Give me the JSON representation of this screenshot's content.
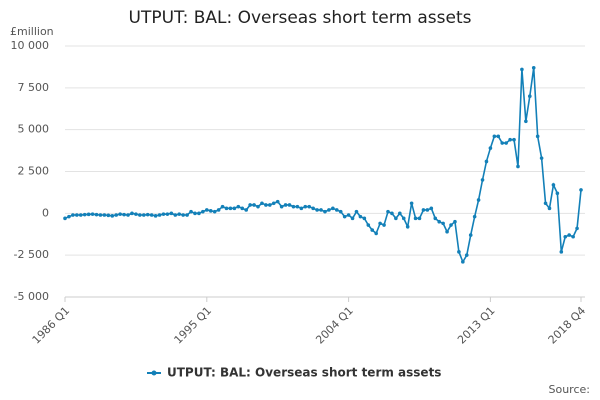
{
  "chart_data": {
    "type": "line",
    "title": "UTPUT: BAL: Overseas short term assets",
    "y_label": "£million",
    "source": "Source:",
    "categories": [
      "1986 Q1",
      null,
      null,
      null,
      null,
      null,
      null,
      null,
      null,
      null,
      null,
      null,
      null,
      null,
      null,
      null,
      null,
      null,
      null,
      null,
      null,
      null,
      null,
      null,
      null,
      null,
      null,
      null,
      null,
      null,
      null,
      null,
      null,
      null,
      null,
      null,
      "1995 Q1",
      null,
      null,
      null,
      null,
      null,
      null,
      null,
      null,
      null,
      null,
      null,
      null,
      null,
      null,
      null,
      null,
      null,
      null,
      null,
      null,
      null,
      null,
      null,
      null,
      null,
      null,
      null,
      null,
      null,
      null,
      null,
      null,
      null,
      null,
      null,
      "2004 Q1",
      null,
      null,
      null,
      null,
      null,
      null,
      null,
      null,
      null,
      null,
      null,
      null,
      null,
      null,
      null,
      null,
      null,
      null,
      null,
      null,
      null,
      null,
      null,
      null,
      null,
      null,
      null,
      null,
      null,
      null,
      null,
      null,
      null,
      null,
      null,
      "2013 Q1",
      null,
      null,
      null,
      null,
      null,
      null,
      null,
      null,
      null,
      null,
      null,
      null,
      null,
      null,
      null,
      null,
      null,
      null,
      null,
      null,
      null,
      null,
      "2018 Q4"
    ],
    "series": [
      {
        "name": "UTPUT: BAL: Overseas short term assets",
        "color": "#1380b8",
        "values": [
          -300,
          -200,
          -100,
          -100,
          -100,
          -80,
          -60,
          -50,
          -80,
          -100,
          -100,
          -120,
          -150,
          -100,
          -50,
          -80,
          -100,
          0,
          -50,
          -100,
          -100,
          -80,
          -100,
          -150,
          -100,
          -50,
          -50,
          0,
          -100,
          -50,
          -100,
          -100,
          100,
          0,
          0,
          100,
          200,
          150,
          100,
          200,
          400,
          300,
          300,
          300,
          400,
          300,
          200,
          500,
          500,
          400,
          600,
          500,
          500,
          600,
          700,
          400,
          500,
          500,
          400,
          400,
          300,
          400,
          400,
          300,
          200,
          200,
          100,
          200,
          300,
          200,
          100,
          -200,
          -100,
          -300,
          100,
          -200,
          -300,
          -700,
          -1000,
          -1200,
          -600,
          -700,
          100,
          0,
          -300,
          0,
          -300,
          -800,
          600,
          -300,
          -300,
          200,
          200,
          300,
          -300,
          -500,
          -600,
          -1100,
          -700,
          -500,
          -2300,
          -2900,
          -2500,
          -1300,
          -200,
          800,
          2000,
          3100,
          3900,
          4600,
          4600,
          4200,
          4200,
          4400,
          4400,
          2800,
          8600,
          5500,
          7000,
          8700,
          4600,
          3300,
          600,
          300,
          1700,
          1200,
          -2300,
          -1400,
          -1300,
          -1400,
          -900,
          1400
        ]
      }
    ],
    "ylim": [
      -5000,
      10000
    ],
    "yticks": [
      {
        "value": -5000,
        "label": "-5 000"
      },
      {
        "value": -2500,
        "label": "-2 500"
      },
      0,
      {
        "value": 2500,
        "label": "2 500"
      },
      {
        "value": 5000,
        "label": "5 000"
      },
      {
        "value": 7500,
        "label": "7 500"
      },
      {
        "value": 10000,
        "label": "10 000"
      }
    ],
    "grid": true,
    "legend": "bottom"
  }
}
